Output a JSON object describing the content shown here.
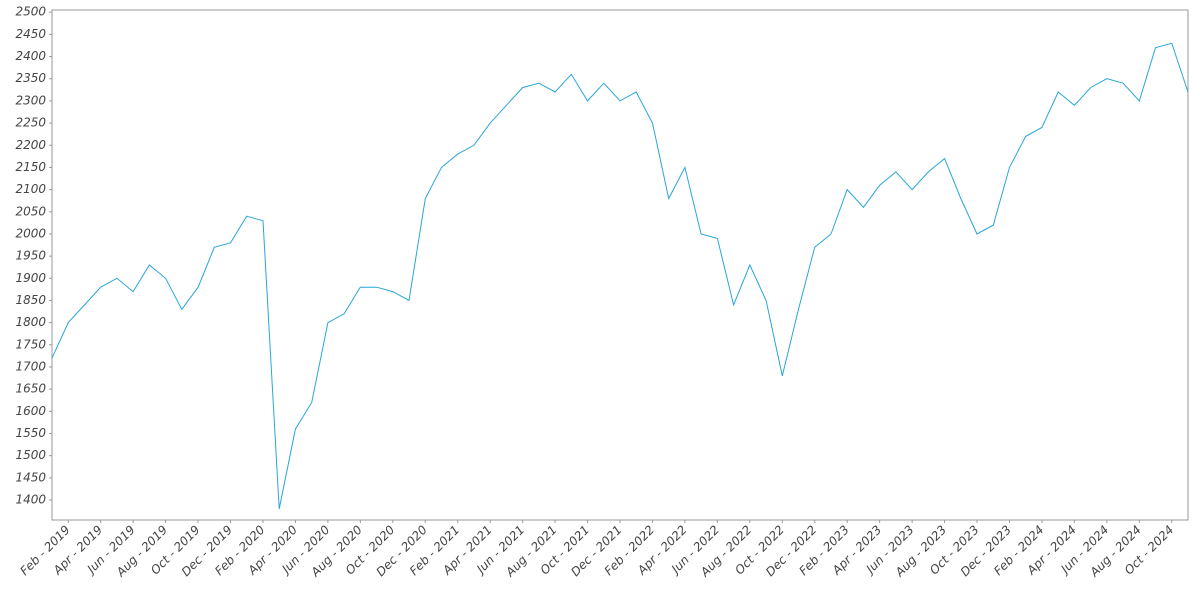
{
  "chart_data": {
    "type": "line",
    "x": [
      "2019-01",
      "2019-02",
      "2019-03",
      "2019-04",
      "2019-05",
      "2019-06",
      "2019-07",
      "2019-08",
      "2019-09",
      "2019-10",
      "2019-11",
      "2019-12",
      "2020-01",
      "2020-02",
      "2020-03",
      "2020-04",
      "2020-05",
      "2020-06",
      "2020-07",
      "2020-08",
      "2020-09",
      "2020-10",
      "2020-11",
      "2020-12",
      "2021-01",
      "2021-02",
      "2021-03",
      "2021-04",
      "2021-05",
      "2021-06",
      "2021-07",
      "2021-08",
      "2021-09",
      "2021-10",
      "2021-11",
      "2021-12",
      "2022-01",
      "2022-02",
      "2022-03",
      "2022-04",
      "2022-05",
      "2022-06",
      "2022-07",
      "2022-08",
      "2022-09",
      "2022-10",
      "2022-11",
      "2022-12",
      "2023-01",
      "2023-02",
      "2023-03",
      "2023-04",
      "2023-05",
      "2023-06",
      "2023-07",
      "2023-08",
      "2023-09",
      "2023-10",
      "2023-11",
      "2023-12",
      "2024-01",
      "2024-02",
      "2024-03",
      "2024-04",
      "2024-05",
      "2024-06",
      "2024-07",
      "2024-08",
      "2024-09",
      "2024-10",
      "2024-11"
    ],
    "values": [
      1720,
      1800,
      1840,
      1880,
      1900,
      1870,
      1930,
      1900,
      1830,
      1880,
      1970,
      1980,
      2040,
      2030,
      1380,
      1560,
      1620,
      1800,
      1820,
      1880,
      1880,
      1870,
      1850,
      2080,
      2150,
      2180,
      2200,
      2250,
      2290,
      2330,
      2340,
      2320,
      2360,
      2300,
      2340,
      2300,
      2320,
      2250,
      2080,
      2150,
      2000,
      1990,
      1840,
      1930,
      1850,
      1680,
      1830,
      1970,
      2000,
      2100,
      2060,
      2110,
      2140,
      2100,
      2140,
      2170,
      2080,
      2000,
      2020,
      2150,
      2220,
      2240,
      2320,
      2290,
      2330,
      2350,
      2340,
      2300,
      2420,
      2430,
      2320
    ],
    "color": "#29a6d8",
    "xlim": [
      "2019-01",
      "2024-11"
    ],
    "xticks": [
      {
        "value": "2019-02",
        "label": "Feb - 2019"
      },
      {
        "value": "2019-04",
        "label": "Apr - 2019"
      },
      {
        "value": "2019-06",
        "label": "Jun - 2019"
      },
      {
        "value": "2019-08",
        "label": "Aug - 2019"
      },
      {
        "value": "2019-10",
        "label": "Oct - 2019"
      },
      {
        "value": "2019-12",
        "label": "Dec - 2019"
      },
      {
        "value": "2020-02",
        "label": "Feb - 2020"
      },
      {
        "value": "2020-04",
        "label": "Apr - 2020"
      },
      {
        "value": "2020-06",
        "label": "Jun - 2020"
      },
      {
        "value": "2020-08",
        "label": "Aug - 2020"
      },
      {
        "value": "2020-10",
        "label": "Oct - 2020"
      },
      {
        "value": "2020-12",
        "label": "Dec - 2020"
      },
      {
        "value": "2021-02",
        "label": "Feb - 2021"
      },
      {
        "value": "2021-04",
        "label": "Apr - 2021"
      },
      {
        "value": "2021-06",
        "label": "Jun - 2021"
      },
      {
        "value": "2021-08",
        "label": "Aug - 2021"
      },
      {
        "value": "2021-10",
        "label": "Oct - 2021"
      },
      {
        "value": "2021-12",
        "label": "Dec - 2021"
      },
      {
        "value": "2022-02",
        "label": "Feb - 2022"
      },
      {
        "value": "2022-04",
        "label": "Apr - 2022"
      },
      {
        "value": "2022-06",
        "label": "Jun - 2022"
      },
      {
        "value": "2022-08",
        "label": "Aug - 2022"
      },
      {
        "value": "2022-10",
        "label": "Oct - 2022"
      },
      {
        "value": "2022-12",
        "label": "Dec - 2022"
      },
      {
        "value": "2023-02",
        "label": "Feb - 2023"
      },
      {
        "value": "2023-04",
        "label": "Apr - 2023"
      },
      {
        "value": "2023-06",
        "label": "Jun - 2023"
      },
      {
        "value": "2023-08",
        "label": "Aug - 2023"
      },
      {
        "value": "2023-10",
        "label": "Oct - 2023"
      },
      {
        "value": "2023-12",
        "label": "Dec - 2023"
      },
      {
        "value": "2024-02",
        "label": "Feb - 2024"
      },
      {
        "value": "2024-04",
        "label": "Apr - 2024"
      },
      {
        "value": "2024-06",
        "label": "Jun - 2024"
      },
      {
        "value": "2024-08",
        "label": "Aug - 2024"
      },
      {
        "value": "2024-10",
        "label": "Oct - 2024"
      }
    ],
    "ylim": [
      1355,
      2505
    ],
    "yticks": [
      1400,
      1450,
      1500,
      1550,
      1600,
      1650,
      1700,
      1750,
      1800,
      1850,
      1900,
      1950,
      2000,
      2050,
      2100,
      2150,
      2200,
      2250,
      2300,
      2350,
      2400,
      2450,
      2500
    ],
    "grid": false
  }
}
